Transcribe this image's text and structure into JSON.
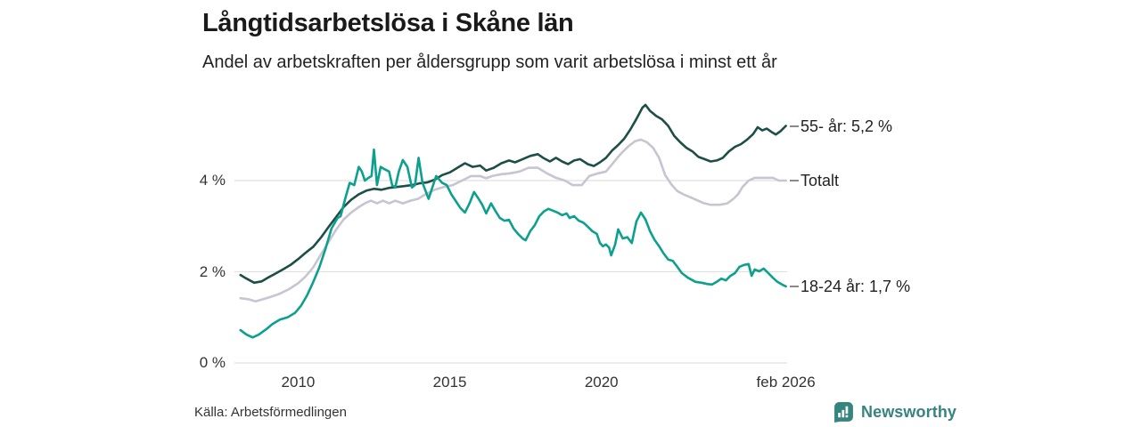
{
  "header": {
    "title": "Långtidsarbetslösa i Skåne län",
    "subtitle": "Andel av arbetskraften per åldersgrupp som varit arbetslösa i minst ett år"
  },
  "footer": {
    "source": "Källa: Arbetsförmedlingen",
    "brand": "Newsworthy",
    "brand_color": "#35847e"
  },
  "colors": {
    "grid": "#e1e1e1",
    "axis_text": "#333333",
    "label_text": "#222222",
    "connector": "#8a8a8a"
  },
  "chart_data": {
    "type": "line",
    "title": "Långtidsarbetslösa i Skåne län",
    "subtitle": "Andel av arbetskraften per åldersgrupp som varit arbetslösa i minst ett år",
    "unit": "%",
    "grid": "horizontal-only",
    "legend_position": "right-end-labels",
    "x_axis": {
      "range": [
        2007.9,
        2026.12
      ],
      "ticks": [
        {
          "label": "2010",
          "year": 2010.0
        },
        {
          "label": "2015",
          "year": 2015.0
        },
        {
          "label": "2020",
          "year": 2020.0
        },
        {
          "label": "feb 2026",
          "year": 2026.08
        }
      ]
    },
    "y_axis": {
      "range": [
        0,
        6.05
      ],
      "ticks": [
        {
          "label": "0 %",
          "value": 0
        },
        {
          "label": "2 %",
          "value": 2
        },
        {
          "label": "4 %",
          "value": 4
        }
      ]
    },
    "series": [
      {
        "name": "Totalt",
        "label": "Totalt",
        "color": "#c7c5d2",
        "end_value_display": null,
        "points": [
          [
            2008.1,
            1.42
          ],
          [
            2008.35,
            1.4
          ],
          [
            2008.6,
            1.35
          ],
          [
            2008.85,
            1.4
          ],
          [
            2009.1,
            1.45
          ],
          [
            2009.4,
            1.52
          ],
          [
            2009.7,
            1.62
          ],
          [
            2010.0,
            1.75
          ],
          [
            2010.25,
            1.9
          ],
          [
            2010.5,
            2.1
          ],
          [
            2010.75,
            2.38
          ],
          [
            2011.0,
            2.65
          ],
          [
            2011.25,
            2.92
          ],
          [
            2011.5,
            3.15
          ],
          [
            2011.75,
            3.3
          ],
          [
            2012.0,
            3.42
          ],
          [
            2012.2,
            3.5
          ],
          [
            2012.4,
            3.56
          ],
          [
            2012.6,
            3.5
          ],
          [
            2012.8,
            3.56
          ],
          [
            2013.0,
            3.5
          ],
          [
            2013.2,
            3.56
          ],
          [
            2013.45,
            3.5
          ],
          [
            2013.7,
            3.56
          ],
          [
            2013.95,
            3.6
          ],
          [
            2014.2,
            3.7
          ],
          [
            2014.5,
            3.8
          ],
          [
            2014.8,
            3.86
          ],
          [
            2015.1,
            3.9
          ],
          [
            2015.4,
            4.0
          ],
          [
            2015.7,
            4.1
          ],
          [
            2016.0,
            4.1
          ],
          [
            2016.2,
            4.05
          ],
          [
            2016.4,
            4.1
          ],
          [
            2016.7,
            4.14
          ],
          [
            2017.0,
            4.16
          ],
          [
            2017.3,
            4.2
          ],
          [
            2017.6,
            4.28
          ],
          [
            2017.9,
            4.28
          ],
          [
            2018.2,
            4.16
          ],
          [
            2018.5,
            4.06
          ],
          [
            2018.8,
            4.0
          ],
          [
            2019.05,
            3.9
          ],
          [
            2019.35,
            3.9
          ],
          [
            2019.6,
            4.1
          ],
          [
            2019.9,
            4.16
          ],
          [
            2020.15,
            4.2
          ],
          [
            2020.4,
            4.4
          ],
          [
            2020.65,
            4.6
          ],
          [
            2020.9,
            4.76
          ],
          [
            2021.1,
            4.86
          ],
          [
            2021.3,
            4.9
          ],
          [
            2021.5,
            4.84
          ],
          [
            2021.7,
            4.72
          ],
          [
            2021.9,
            4.5
          ],
          [
            2022.1,
            4.12
          ],
          [
            2022.3,
            3.92
          ],
          [
            2022.5,
            3.77
          ],
          [
            2022.7,
            3.7
          ],
          [
            2022.95,
            3.63
          ],
          [
            2023.15,
            3.57
          ],
          [
            2023.35,
            3.51
          ],
          [
            2023.6,
            3.47
          ],
          [
            2023.9,
            3.47
          ],
          [
            2024.15,
            3.5
          ],
          [
            2024.35,
            3.6
          ],
          [
            2024.5,
            3.7
          ],
          [
            2024.65,
            3.86
          ],
          [
            2024.85,
            4.0
          ],
          [
            2025.05,
            4.06
          ],
          [
            2025.35,
            4.06
          ],
          [
            2025.65,
            4.06
          ],
          [
            2025.85,
            4.0
          ],
          [
            2026.08,
            4.0
          ]
        ]
      },
      {
        "name": "55- år",
        "label": "55- år: 5,2 %",
        "color": "#1d4f46",
        "end_value_display": "5,2 %",
        "points": [
          [
            2008.1,
            1.93
          ],
          [
            2008.3,
            1.85
          ],
          [
            2008.55,
            1.76
          ],
          [
            2008.8,
            1.79
          ],
          [
            2009.0,
            1.87
          ],
          [
            2009.25,
            1.96
          ],
          [
            2009.5,
            2.05
          ],
          [
            2009.75,
            2.15
          ],
          [
            2010.0,
            2.28
          ],
          [
            2010.25,
            2.42
          ],
          [
            2010.5,
            2.55
          ],
          [
            2010.75,
            2.75
          ],
          [
            2011.0,
            2.98
          ],
          [
            2011.25,
            3.2
          ],
          [
            2011.5,
            3.42
          ],
          [
            2011.75,
            3.58
          ],
          [
            2012.0,
            3.7
          ],
          [
            2012.25,
            3.78
          ],
          [
            2012.5,
            3.82
          ],
          [
            2012.75,
            3.8
          ],
          [
            2013.0,
            3.84
          ],
          [
            2013.25,
            3.86
          ],
          [
            2013.5,
            3.88
          ],
          [
            2013.75,
            3.9
          ],
          [
            2014.0,
            3.94
          ],
          [
            2014.25,
            3.96
          ],
          [
            2014.5,
            4.02
          ],
          [
            2014.75,
            4.12
          ],
          [
            2015.0,
            4.18
          ],
          [
            2015.25,
            4.28
          ],
          [
            2015.5,
            4.38
          ],
          [
            2015.75,
            4.3
          ],
          [
            2016.0,
            4.33
          ],
          [
            2016.2,
            4.22
          ],
          [
            2016.45,
            4.28
          ],
          [
            2016.7,
            4.38
          ],
          [
            2016.95,
            4.44
          ],
          [
            2017.15,
            4.4
          ],
          [
            2017.4,
            4.47
          ],
          [
            2017.65,
            4.54
          ],
          [
            2017.9,
            4.58
          ],
          [
            2018.1,
            4.49
          ],
          [
            2018.3,
            4.42
          ],
          [
            2018.5,
            4.5
          ],
          [
            2018.7,
            4.42
          ],
          [
            2018.9,
            4.36
          ],
          [
            2019.1,
            4.44
          ],
          [
            2019.3,
            4.47
          ],
          [
            2019.55,
            4.36
          ],
          [
            2019.75,
            4.32
          ],
          [
            2019.95,
            4.4
          ],
          [
            2020.15,
            4.5
          ],
          [
            2020.35,
            4.66
          ],
          [
            2020.55,
            4.78
          ],
          [
            2020.75,
            4.92
          ],
          [
            2020.95,
            5.12
          ],
          [
            2021.15,
            5.35
          ],
          [
            2021.35,
            5.6
          ],
          [
            2021.45,
            5.66
          ],
          [
            2021.6,
            5.53
          ],
          [
            2021.8,
            5.42
          ],
          [
            2022.0,
            5.34
          ],
          [
            2022.2,
            5.2
          ],
          [
            2022.4,
            4.98
          ],
          [
            2022.6,
            4.84
          ],
          [
            2022.8,
            4.72
          ],
          [
            2023.0,
            4.64
          ],
          [
            2023.2,
            4.52
          ],
          [
            2023.4,
            4.47
          ],
          [
            2023.6,
            4.42
          ],
          [
            2023.8,
            4.44
          ],
          [
            2024.0,
            4.5
          ],
          [
            2024.2,
            4.64
          ],
          [
            2024.4,
            4.74
          ],
          [
            2024.6,
            4.8
          ],
          [
            2024.8,
            4.9
          ],
          [
            2025.0,
            5.02
          ],
          [
            2025.15,
            5.17
          ],
          [
            2025.3,
            5.1
          ],
          [
            2025.45,
            5.14
          ],
          [
            2025.6,
            5.07
          ],
          [
            2025.75,
            5.01
          ],
          [
            2025.9,
            5.08
          ],
          [
            2026.08,
            5.2
          ]
        ]
      },
      {
        "name": "18-24 år",
        "label": "18-24 år: 1,7 %",
        "color": "#0da08e",
        "end_value_display": "1,7 %",
        "points": [
          [
            2008.1,
            0.72
          ],
          [
            2008.3,
            0.62
          ],
          [
            2008.5,
            0.56
          ],
          [
            2008.7,
            0.62
          ],
          [
            2008.95,
            0.74
          ],
          [
            2009.15,
            0.85
          ],
          [
            2009.4,
            0.95
          ],
          [
            2009.65,
            1.0
          ],
          [
            2009.9,
            1.1
          ],
          [
            2010.1,
            1.26
          ],
          [
            2010.3,
            1.49
          ],
          [
            2010.5,
            1.78
          ],
          [
            2010.7,
            2.1
          ],
          [
            2010.9,
            2.5
          ],
          [
            2011.1,
            2.95
          ],
          [
            2011.3,
            3.18
          ],
          [
            2011.4,
            3.22
          ],
          [
            2011.55,
            3.6
          ],
          [
            2011.7,
            3.95
          ],
          [
            2011.85,
            3.9
          ],
          [
            2012.0,
            4.3
          ],
          [
            2012.1,
            4.2
          ],
          [
            2012.2,
            4.0
          ],
          [
            2012.3,
            4.05
          ],
          [
            2012.42,
            4.1
          ],
          [
            2012.5,
            4.68
          ],
          [
            2012.6,
            3.9
          ],
          [
            2012.72,
            4.3
          ],
          [
            2012.85,
            4.25
          ],
          [
            2013.0,
            4.2
          ],
          [
            2013.1,
            3.9
          ],
          [
            2013.2,
            3.85
          ],
          [
            2013.32,
            4.2
          ],
          [
            2013.45,
            4.45
          ],
          [
            2013.6,
            4.3
          ],
          [
            2013.75,
            3.85
          ],
          [
            2013.85,
            3.9
          ],
          [
            2013.97,
            4.5
          ],
          [
            2014.1,
            3.95
          ],
          [
            2014.3,
            3.6
          ],
          [
            2014.55,
            4.1
          ],
          [
            2014.75,
            3.95
          ],
          [
            2014.9,
            3.9
          ],
          [
            2015.05,
            3.7
          ],
          [
            2015.2,
            3.55
          ],
          [
            2015.35,
            3.4
          ],
          [
            2015.5,
            3.3
          ],
          [
            2015.65,
            3.5
          ],
          [
            2015.8,
            3.75
          ],
          [
            2015.95,
            3.6
          ],
          [
            2016.07,
            3.47
          ],
          [
            2016.2,
            3.28
          ],
          [
            2016.36,
            3.5
          ],
          [
            2016.5,
            3.34
          ],
          [
            2016.65,
            3.18
          ],
          [
            2016.8,
            3.12
          ],
          [
            2016.95,
            3.14
          ],
          [
            2017.1,
            2.95
          ],
          [
            2017.25,
            2.83
          ],
          [
            2017.4,
            2.73
          ],
          [
            2017.5,
            2.69
          ],
          [
            2017.65,
            2.89
          ],
          [
            2017.8,
            3.02
          ],
          [
            2017.95,
            3.22
          ],
          [
            2018.1,
            3.32
          ],
          [
            2018.25,
            3.38
          ],
          [
            2018.4,
            3.34
          ],
          [
            2018.55,
            3.3
          ],
          [
            2018.7,
            3.24
          ],
          [
            2018.85,
            3.28
          ],
          [
            2018.95,
            3.18
          ],
          [
            2019.1,
            3.22
          ],
          [
            2019.25,
            3.12
          ],
          [
            2019.4,
            3.08
          ],
          [
            2019.55,
            2.99
          ],
          [
            2019.7,
            2.89
          ],
          [
            2019.85,
            2.83
          ],
          [
            2019.95,
            2.63
          ],
          [
            2020.05,
            2.56
          ],
          [
            2020.15,
            2.6
          ],
          [
            2020.25,
            2.53
          ],
          [
            2020.32,
            2.36
          ],
          [
            2020.45,
            2.6
          ],
          [
            2020.55,
            2.93
          ],
          [
            2020.7,
            2.73
          ],
          [
            2020.85,
            2.76
          ],
          [
            2021.0,
            2.63
          ],
          [
            2021.15,
            3.1
          ],
          [
            2021.3,
            3.3
          ],
          [
            2021.45,
            3.15
          ],
          [
            2021.6,
            2.89
          ],
          [
            2021.75,
            2.7
          ],
          [
            2021.9,
            2.56
          ],
          [
            2022.05,
            2.4
          ],
          [
            2022.2,
            2.27
          ],
          [
            2022.35,
            2.24
          ],
          [
            2022.5,
            2.11
          ],
          [
            2022.65,
            1.97
          ],
          [
            2022.85,
            1.87
          ],
          [
            2023.1,
            1.78
          ],
          [
            2023.3,
            1.76
          ],
          [
            2023.5,
            1.73
          ],
          [
            2023.65,
            1.72
          ],
          [
            2023.8,
            1.78
          ],
          [
            2023.95,
            1.85
          ],
          [
            2024.1,
            1.81
          ],
          [
            2024.25,
            1.91
          ],
          [
            2024.4,
            1.97
          ],
          [
            2024.55,
            2.11
          ],
          [
            2024.7,
            2.15
          ],
          [
            2024.85,
            2.17
          ],
          [
            2024.95,
            1.91
          ],
          [
            2025.05,
            2.05
          ],
          [
            2025.2,
            2.01
          ],
          [
            2025.35,
            2.07
          ],
          [
            2025.5,
            1.97
          ],
          [
            2025.65,
            1.87
          ],
          [
            2025.8,
            1.78
          ],
          [
            2025.95,
            1.72
          ],
          [
            2026.08,
            1.68
          ]
        ]
      }
    ]
  }
}
